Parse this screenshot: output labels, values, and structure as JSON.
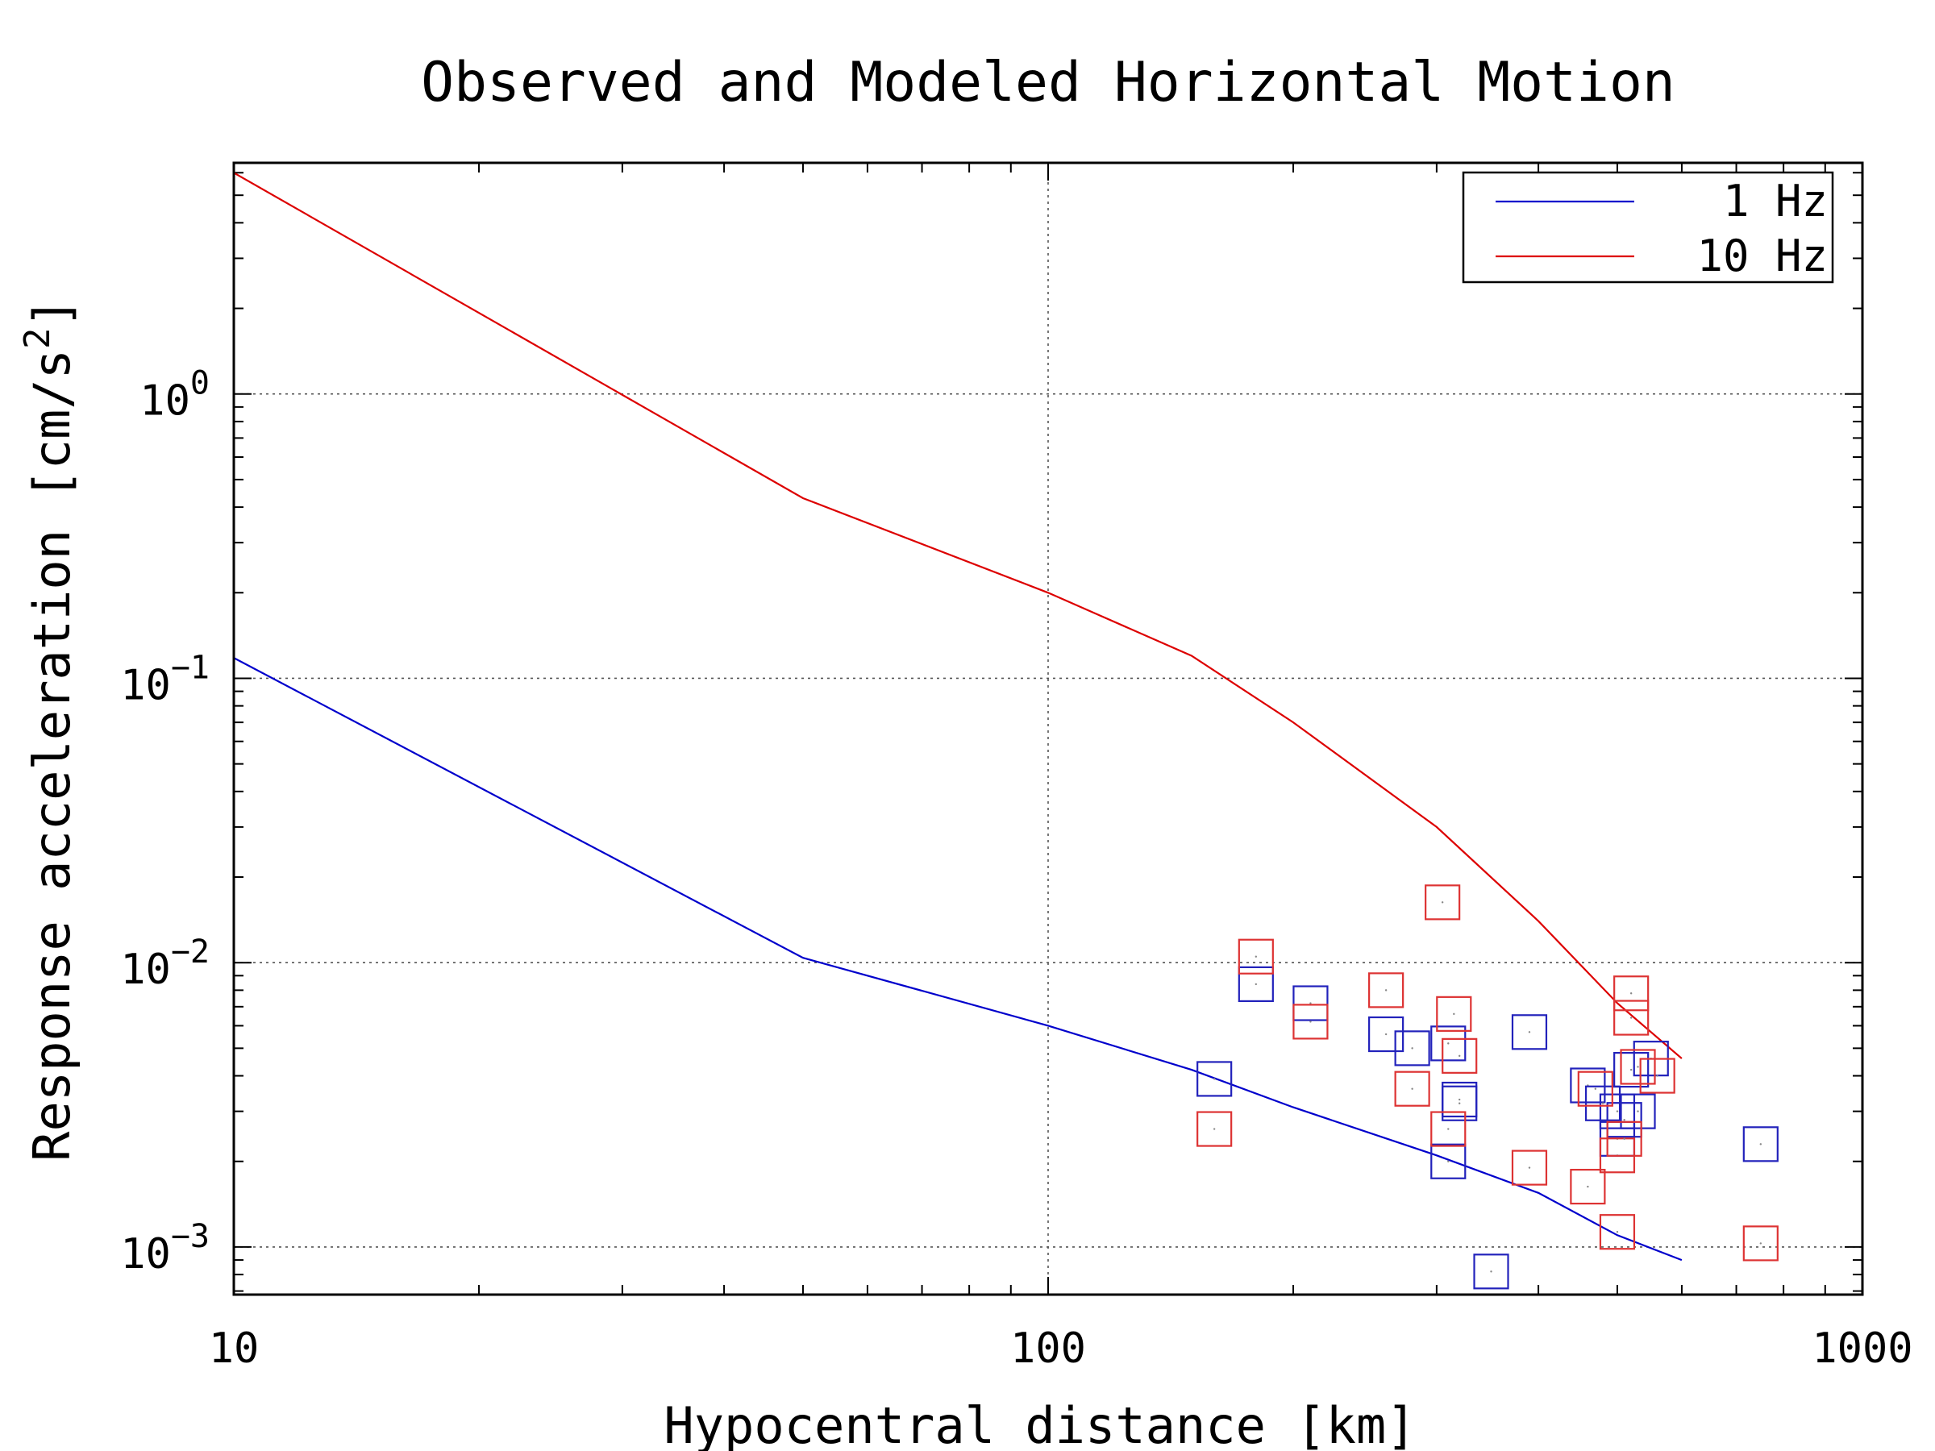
{
  "chart_data": {
    "type": "line",
    "title": "Observed and Modeled Horizontal Motion",
    "xlabel": "Hypocentral distance [km]",
    "ylabel_text": "Response acceleration [cm/s",
    "ylabel_superscript": "2",
    "ylabel_suffix": "]",
    "x_scale": "log",
    "y_scale": "log",
    "xlim": [
      10,
      1000
    ],
    "ylim": [
      0.00068,
      6.5
    ],
    "grid": true,
    "legend_position": "top-right",
    "x_ticks": [
      {
        "value": 10,
        "label": "10"
      },
      {
        "value": 100,
        "label": "100"
      },
      {
        "value": 1000,
        "label": "1000"
      }
    ],
    "y_ticks": [
      {
        "value": 1,
        "base": "10",
        "exp": "0"
      },
      {
        "value": 0.1,
        "base": "10",
        "exp": "−1"
      },
      {
        "value": 0.01,
        "base": "10",
        "exp": "−2"
      },
      {
        "value": 0.001,
        "base": "10",
        "exp": "−3"
      }
    ],
    "series": [
      {
        "name": "1 Hz",
        "color": "#0000cc",
        "x": [
          10,
          50,
          100,
          150,
          200,
          300,
          400,
          500,
          600
        ],
        "y": [
          0.118,
          0.0104,
          0.006,
          0.0042,
          0.0031,
          0.0021,
          0.00155,
          0.0011,
          0.0009
        ]
      },
      {
        "name": "10 Hz",
        "color": "#dd0000",
        "x": [
          10,
          50,
          100,
          150,
          200,
          300,
          400,
          500,
          600
        ],
        "y": [
          6.0,
          0.43,
          0.2,
          0.12,
          0.07,
          0.03,
          0.014,
          0.0072,
          0.0046
        ]
      }
    ],
    "observations": [
      {
        "name": "1 Hz",
        "color": "#2222bb",
        "x": [
          160,
          180,
          210,
          260,
          280,
          310,
          320,
          350,
          390,
          460,
          480,
          500,
          500,
          510,
          520,
          530,
          550,
          750,
          310,
          320
        ],
        "y": [
          0.0039,
          0.0084,
          0.0072,
          0.0056,
          0.005,
          0.0052,
          0.0032,
          0.00082,
          0.0057,
          0.0037,
          0.0032,
          0.003,
          0.0024,
          0.0028,
          0.0042,
          0.003,
          0.0046,
          0.0023,
          0.002,
          0.0033
        ]
      },
      {
        "name": "10 Hz",
        "color": "#dd3333",
        "x": [
          160,
          180,
          210,
          260,
          280,
          305,
          310,
          315,
          320,
          390,
          460,
          470,
          500,
          500,
          510,
          520,
          520,
          530,
          560,
          750
        ],
        "y": [
          0.0026,
          0.0105,
          0.0062,
          0.008,
          0.0036,
          0.0163,
          0.0026,
          0.0066,
          0.0047,
          0.0019,
          0.00163,
          0.0036,
          0.0021,
          0.00113,
          0.0024,
          0.0078,
          0.0064,
          0.0043,
          0.004,
          0.00103
        ]
      }
    ]
  }
}
